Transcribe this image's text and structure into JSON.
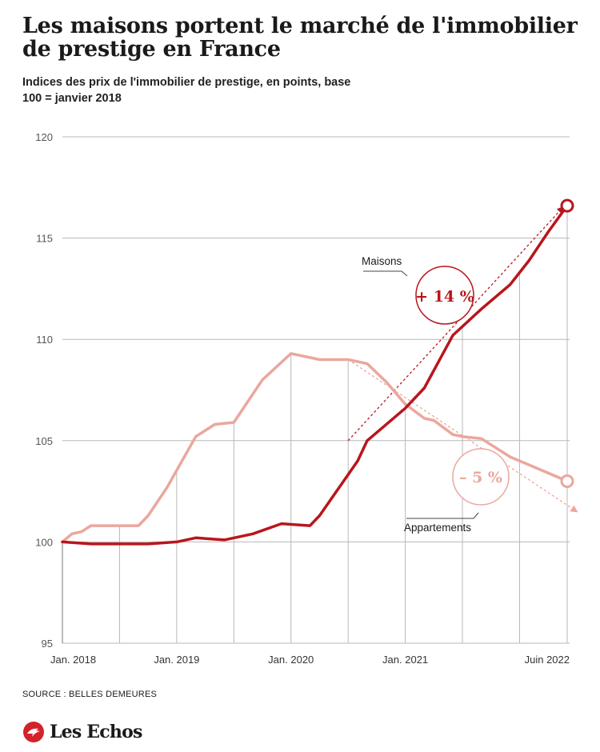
{
  "header": {
    "title": "Les maisons portent le marché de l'immobilier de prestige en France",
    "subtitle": "Indices des prix de l'immobilier de prestige, en points, base 100 = janvier 2018"
  },
  "footer": {
    "source": "SOURCE : BELLES DEMEURES",
    "brand": "Les Echos"
  },
  "colors": {
    "maisons": "#b8161c",
    "appartements": "#eaa79e",
    "grid": "#b8b8b8",
    "text": "#1a1a1a"
  },
  "chart_data": {
    "type": "line",
    "title": "Les maisons portent le marché de l'immobilier de prestige en France",
    "subtitle": "Indices des prix de l'immobilier de prestige, en points, base 100 = janvier 2018",
    "xlabel": "",
    "ylabel": "",
    "xlim": [
      "2018-01",
      "2022-06"
    ],
    "ylim": [
      95,
      120
    ],
    "yticks": [
      95,
      100,
      105,
      110,
      115,
      120
    ],
    "xtick_labels": [
      {
        "date": "2018-01",
        "label": "Jan. 2018"
      },
      {
        "date": "2019-01",
        "label": "Jan. 2019"
      },
      {
        "date": "2020-01",
        "label": "Jan. 2020"
      },
      {
        "date": "2021-01",
        "label": "Jan. 2021"
      },
      {
        "date": "2022-06",
        "label": "Juin 2022"
      }
    ],
    "grid": true,
    "series": [
      {
        "name": "Maisons",
        "color": "#b8161c",
        "points": [
          [
            "2018-01",
            100.0
          ],
          [
            "2018-04",
            99.9
          ],
          [
            "2018-07",
            99.9
          ],
          [
            "2018-10",
            99.9
          ],
          [
            "2019-01",
            100.0
          ],
          [
            "2019-03",
            100.2
          ],
          [
            "2019-06",
            100.1
          ],
          [
            "2019-09",
            100.4
          ],
          [
            "2019-12",
            100.9
          ],
          [
            "2020-03",
            100.8
          ],
          [
            "2020-04",
            101.3
          ],
          [
            "2020-08",
            104.0
          ],
          [
            "2020-09",
            105.0
          ],
          [
            "2021-01",
            106.6
          ],
          [
            "2021-03",
            107.6
          ],
          [
            "2021-06",
            110.2
          ],
          [
            "2021-09",
            111.5
          ],
          [
            "2021-12",
            112.7
          ],
          [
            "2022-02",
            113.9
          ],
          [
            "2022-04",
            115.3
          ],
          [
            "2022-06",
            116.6
          ]
        ],
        "annotation": "+ 14 %"
      },
      {
        "name": "Appartements",
        "color": "#eaa79e",
        "points": [
          [
            "2018-01",
            100.0
          ],
          [
            "2018-02",
            100.4
          ],
          [
            "2018-03",
            100.5
          ],
          [
            "2018-04",
            100.8
          ],
          [
            "2018-09",
            100.8
          ],
          [
            "2018-10",
            101.3
          ],
          [
            "2018-12",
            102.7
          ],
          [
            "2019-03",
            105.2
          ],
          [
            "2019-05",
            105.8
          ],
          [
            "2019-07",
            105.9
          ],
          [
            "2019-10",
            108.0
          ],
          [
            "2020-01",
            109.3
          ],
          [
            "2020-04",
            109.0
          ],
          [
            "2020-07",
            109.0
          ],
          [
            "2020-09",
            108.8
          ],
          [
            "2020-11",
            107.9
          ],
          [
            "2021-01",
            106.8
          ],
          [
            "2021-03",
            106.1
          ],
          [
            "2021-04",
            106.0
          ],
          [
            "2021-06",
            105.3
          ],
          [
            "2021-07",
            105.2
          ],
          [
            "2021-09",
            105.1
          ],
          [
            "2021-12",
            104.2
          ],
          [
            "2022-01",
            104.0
          ],
          [
            "2022-06",
            103.0
          ]
        ],
        "annotation": "– 5 %"
      }
    ],
    "trends": [
      {
        "series": "Maisons",
        "from": [
          "2020-07",
          105
        ],
        "to": [
          "2022-06",
          116.8
        ]
      },
      {
        "series": "Appartements",
        "from": [
          "2020-07",
          109.0
        ],
        "to": [
          "2022-07",
          101.5
        ]
      }
    ]
  }
}
